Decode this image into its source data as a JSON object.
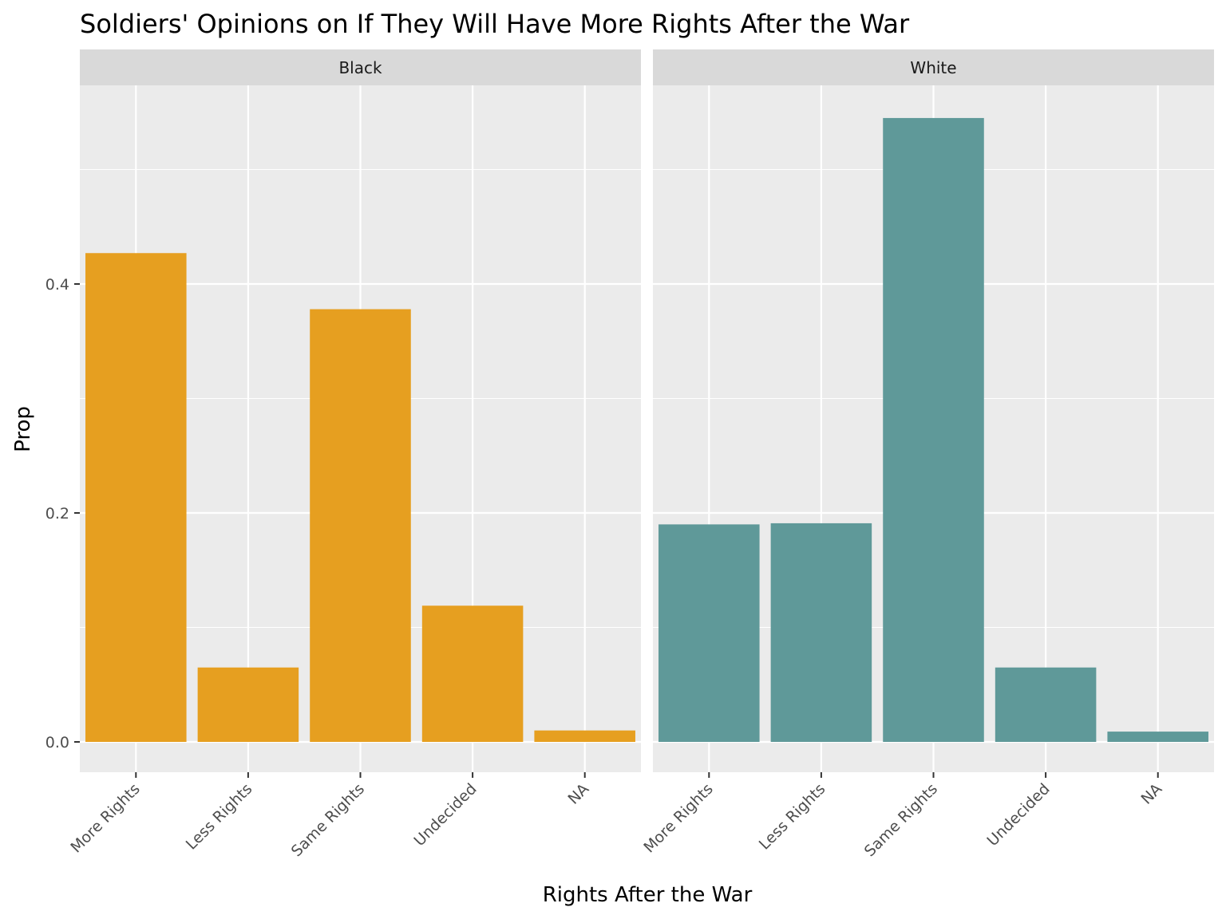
{
  "chart_data": {
    "type": "bar",
    "title": "Soldiers' Opinions on If They Will Have More Rights After the War",
    "xlabel": "Rights After the War",
    "ylabel": "Prop",
    "categories": [
      "More Rights",
      "Less Rights",
      "Same Rights",
      "Undecided",
      "NA"
    ],
    "y_ticks": [
      "0.0",
      "0.2",
      "0.4"
    ],
    "ylim": [
      -0.027,
      0.574
    ],
    "facets": [
      {
        "name": "Black",
        "color": "#E69F20",
        "values": [
          0.427,
          0.065,
          0.378,
          0.119,
          0.01
        ]
      },
      {
        "name": "White",
        "color": "#5F9999",
        "values": [
          0.19,
          0.191,
          0.545,
          0.065,
          0.009
        ]
      }
    ],
    "grid": true,
    "legend": "none"
  }
}
